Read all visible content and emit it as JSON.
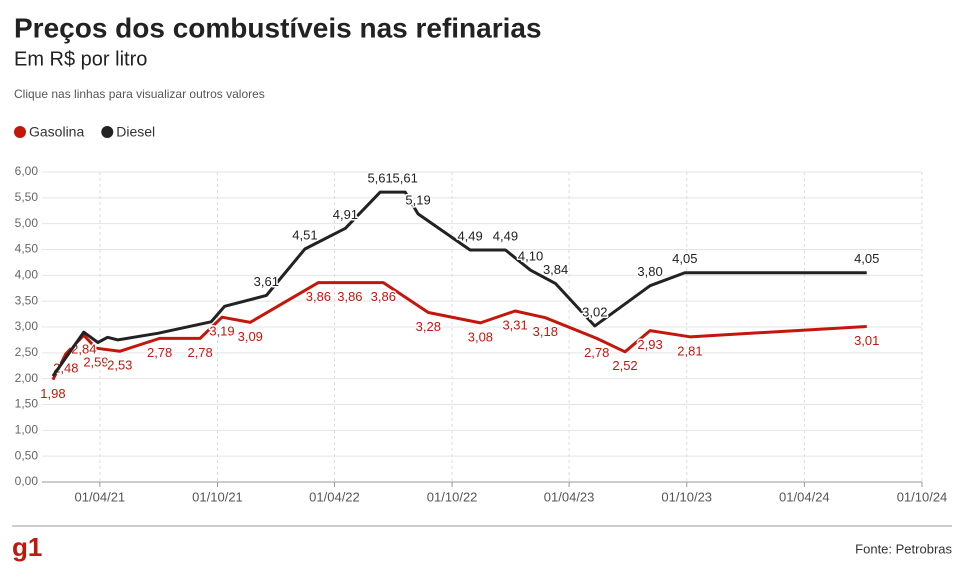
{
  "chart_data": {
    "type": "line",
    "title": "Preços dos combustíveis nas refinarias",
    "subtitle": "Em R$ por litro",
    "note": "Clique nas linhas para visualizar outros valores",
    "source": "Fonte: Petrobras",
    "brand": "g1",
    "xlim": [
      "01/01/21",
      "01/10/24"
    ],
    "xticks": [
      "01/04/21",
      "01/10/21",
      "01/04/22",
      "01/10/22",
      "01/04/23",
      "01/10/23",
      "01/04/24",
      "01/10/24"
    ],
    "ylim": [
      0,
      6
    ],
    "yticks": [
      {
        "value": 0,
        "label": "0,00"
      },
      {
        "value": 0.5,
        "label": "0,50"
      },
      {
        "value": 1,
        "label": "1,00"
      },
      {
        "value": 1.5,
        "label": "1,50"
      },
      {
        "value": 2,
        "label": "2,00"
      },
      {
        "value": 2.5,
        "label": "2,50"
      },
      {
        "value": 3,
        "label": "3,00"
      },
      {
        "value": 3.5,
        "label": "3,50"
      },
      {
        "value": 4,
        "label": "4,00"
      },
      {
        "value": 4.5,
        "label": "4,50"
      },
      {
        "value": 5,
        "label": "5,00"
      },
      {
        "value": 5.5,
        "label": "5,50"
      },
      {
        "value": 6,
        "label": "6,00"
      }
    ],
    "grid": true,
    "series": [
      {
        "name": "Gasolina",
        "color": "#c4170c",
        "label_side": "below",
        "x": [
          "18/01/21",
          "07/02/21",
          "07/03/21",
          "26/03/21",
          "02/05/21",
          "03/07/21",
          "04/09/21",
          "08/10/21",
          "21/11/21",
          "07/03/22",
          "25/04/22",
          "16/06/22",
          "25/08/22",
          "14/11/22",
          "07/01/23",
          "23/02/23",
          "14/05/23",
          "27/06/23",
          "05/08/23",
          "06/10/23",
          "07/07/24"
        ],
        "values": [
          1.98,
          2.48,
          2.84,
          2.59,
          2.53,
          2.78,
          2.78,
          3.19,
          3.09,
          3.86,
          3.86,
          3.86,
          3.28,
          3.08,
          3.31,
          3.18,
          2.78,
          2.52,
          2.93,
          2.81,
          3.01
        ],
        "value_labels": [
          "1,98",
          "2,48",
          "2,84",
          "2,59",
          "2,53",
          "2,78",
          "2,78",
          "3,19",
          "3,09",
          "3,86",
          "3,86",
          "3,86",
          "3,28",
          "3,08",
          "3,31",
          "3,18",
          "2,78",
          "2,52",
          "2,93",
          "2,81",
          "3,01"
        ]
      },
      {
        "name": "Diesel",
        "color": "#222222",
        "label_side": "above",
        "x": [
          "18/01/21",
          "07/03/21",
          "29/03/21",
          "13/04/21",
          "29/04/21",
          "01/07/21",
          "21/09/21",
          "12/10/21",
          "16/12/21",
          "14/02/22",
          "18/04/22",
          "11/06/22",
          "20/07/22",
          "09/08/22",
          "29/10/22",
          "23/12/22",
          "31/01/23",
          "11/03/23",
          "11/05/23",
          "05/08/23",
          "28/09/23",
          "07/07/24"
        ],
        "values": [
          2.05,
          2.9,
          2.7,
          2.8,
          2.75,
          2.88,
          3.1,
          3.4,
          3.61,
          4.51,
          4.91,
          5.61,
          5.61,
          5.19,
          4.49,
          4.49,
          4.1,
          3.84,
          3.02,
          3.8,
          4.05,
          4.05
        ],
        "value_labels": [
          null,
          null,
          null,
          null,
          null,
          null,
          null,
          null,
          "3,61",
          "4,51",
          "4,91",
          "5,61",
          "5,61",
          "5,19",
          "4,49",
          "4,49",
          "4,10",
          "3,84",
          "3,02",
          "3,80",
          "4,05",
          "4,05"
        ]
      }
    ]
  }
}
